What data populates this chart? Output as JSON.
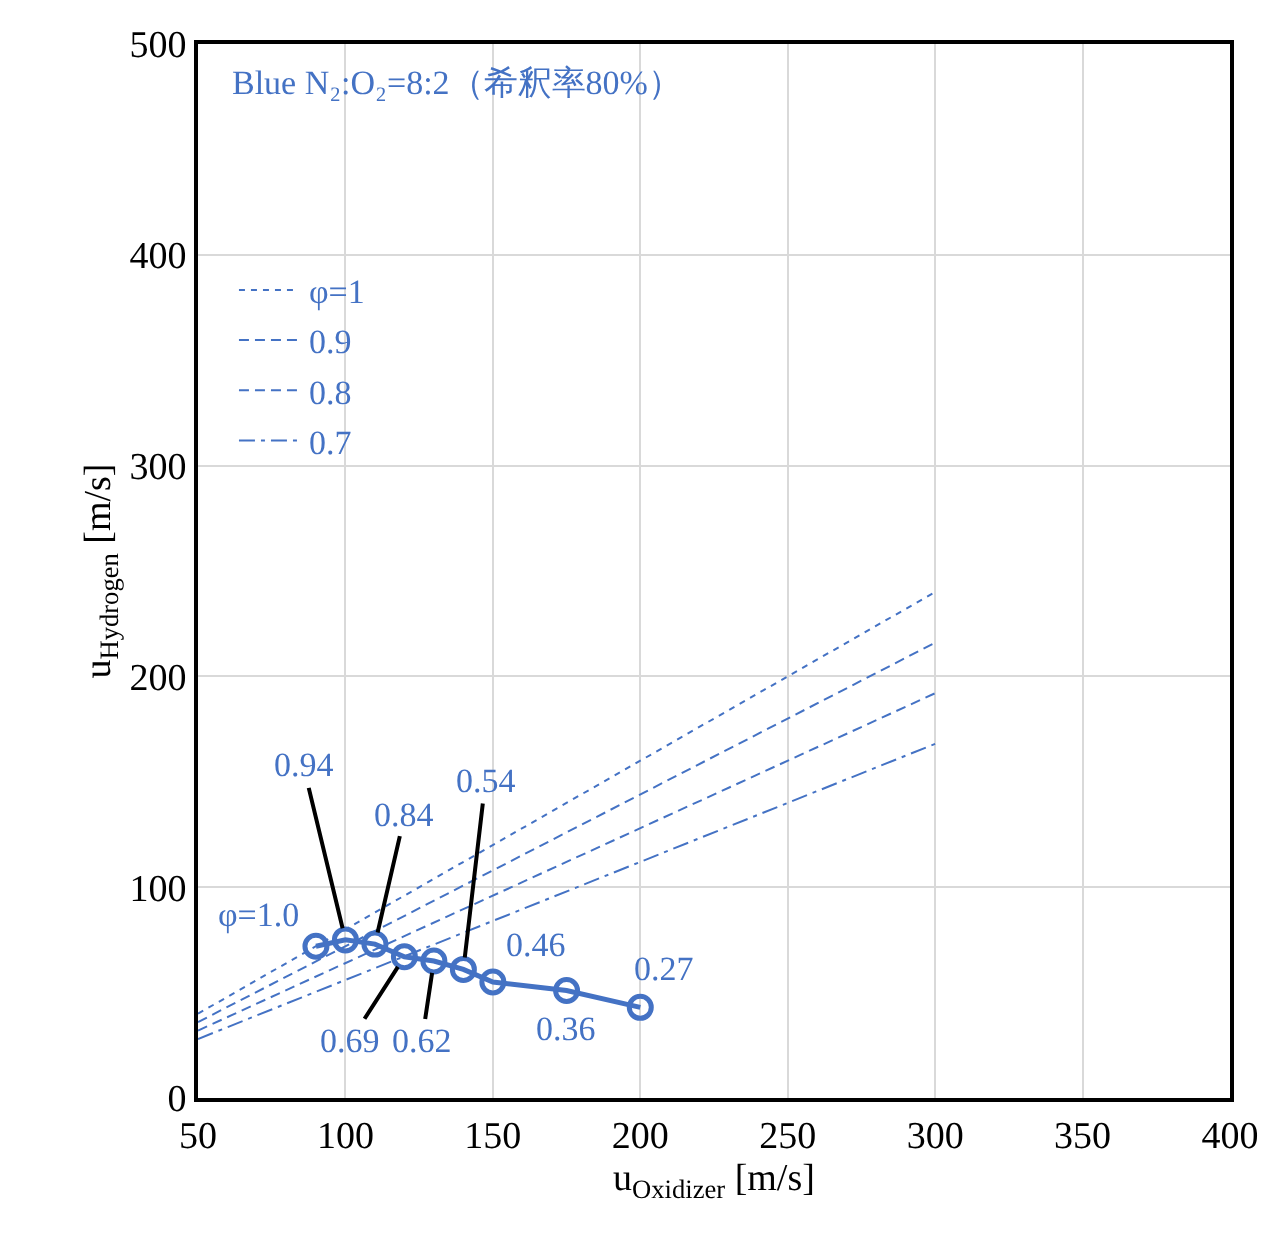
{
  "chart_data": {
    "type": "line",
    "xlabel": "u$_{Oxidizer}$ [m/s]",
    "ylabel": "u$_{Hydrogen}$ [m/s]",
    "xlim": [
      50,
      400
    ],
    "xticks": [
      50,
      100,
      150,
      200,
      250,
      300,
      350,
      400
    ],
    "ylim": [
      0,
      500
    ],
    "yticks": [
      0,
      100,
      200,
      300,
      400,
      500
    ],
    "grid": true,
    "legend": "top left",
    "series": [
      {
        "name": "φ=1",
        "color": "#4472c4",
        "x": [
          50,
          300
        ],
        "values": [
          40,
          240
        ],
        "line_style": "dotted",
        "marker": "none"
      },
      {
        "name": "0.9",
        "color": "#4472c4",
        "x": [
          50,
          300
        ],
        "values": [
          36,
          216
        ],
        "line_style": "dashed",
        "marker": "none"
      },
      {
        "name": "0.8",
        "color": "#4472c4",
        "x": [
          50,
          300
        ],
        "values": [
          32,
          192
        ],
        "line_style": "dashed",
        "marker": "none"
      },
      {
        "name": "0.7",
        "color": "#4472c4",
        "x": [
          50,
          300
        ],
        "values": [
          28,
          168
        ],
        "line_style": "dashdot",
        "marker": "none"
      },
      {
        "color": "#4472c4",
        "x": [
          90,
          100,
          110,
          120,
          130,
          140,
          150,
          175,
          200
        ],
        "values": [
          72,
          75,
          73,
          67,
          65,
          61,
          55,
          51,
          43
        ],
        "line_style": "solid",
        "marker": "circle"
      }
    ],
    "annotations": [
      "Blue N₂:O₂=8:2（希釈率80%）",
      {
        "text": "φ=1.0",
        "x": 90,
        "y": 72
      },
      {
        "text": "0.94",
        "x": 100,
        "y": 75
      },
      {
        "text": "0.84",
        "x": 110,
        "y": 73
      },
      {
        "text": "0.69",
        "x": 120,
        "y": 67
      },
      {
        "text": "0.62",
        "x": 130,
        "y": 65
      },
      {
        "text": "0.54",
        "x": 140,
        "y": 61
      },
      {
        "text": "0.46",
        "x": 150,
        "y": 55
      },
      {
        "text": "0.36",
        "x": 175,
        "y": 51
      },
      {
        "text": "0.27",
        "x": 200,
        "y": 43
      }
    ]
  }
}
